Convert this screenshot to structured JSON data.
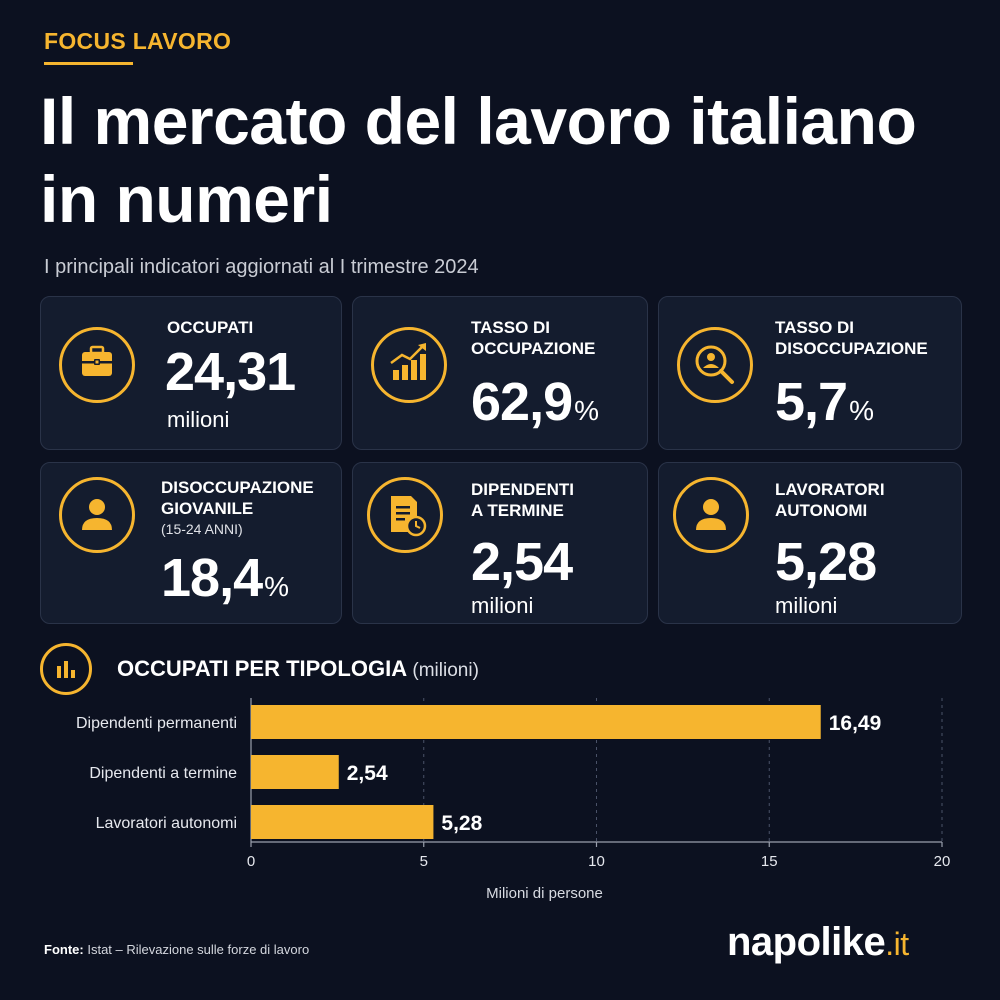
{
  "header": {
    "kicker": "FOCUS LAVORO",
    "title": "Il mercato del lavoro italiano in numeri",
    "subtitle": "I principali indicatori aggiornati al I trimestre 2024"
  },
  "cards": [
    {
      "label_1": "OCCUPATI",
      "label_2": "",
      "value": "24,31",
      "unit": "milioni",
      "icon": "briefcase-icon"
    },
    {
      "label_1": "TASSO DI",
      "label_2": "OCCUPAZIONE",
      "value": "62,9",
      "suffix": "%",
      "icon": "growth-chart-icon"
    },
    {
      "label_1": "TASSO DI",
      "label_2": "DISOCCUPAZIONE",
      "value": "5,7",
      "suffix": "%",
      "icon": "person-search-icon"
    },
    {
      "label_1": "DISOCCUPAZIONE",
      "label_2": "GIOVANILE",
      "sub": "(15-24 ANNI)",
      "value": "18,4",
      "suffix": "%",
      "icon": "person-icon"
    },
    {
      "label_1": "DIPENDENTI",
      "label_2": "A TERMINE",
      "value": "2,54",
      "unit": "milioni",
      "icon": "document-clock-icon"
    },
    {
      "label_1": "LAVORATORI",
      "label_2": "AUTONOMI",
      "value": "5,28",
      "unit": "milioni",
      "icon": "person-icon"
    }
  ],
  "section": {
    "title": "OCCUPATI PER TIPOLOGIA",
    "unit": "(milioni)"
  },
  "chart_data": {
    "type": "bar",
    "orientation": "horizontal",
    "categories": [
      "Dipendenti permanenti",
      "Dipendenti a termine",
      "Lavoratori autonomi"
    ],
    "values": [
      16.49,
      2.54,
      5.28
    ],
    "value_labels": [
      "16,49",
      "2,54",
      "5,28"
    ],
    "xlabel": "Milioni di persone",
    "xlim": [
      0,
      20
    ],
    "xticks": [
      0,
      5,
      10,
      15,
      20
    ],
    "grid": true,
    "bar_color": "#f6b52f"
  },
  "footer": {
    "source_label": "Fonte:",
    "source_text": "Istat – Rilevazione sulle forze di lavoro",
    "logo_main": "napolike",
    "logo_tld": ".it"
  }
}
